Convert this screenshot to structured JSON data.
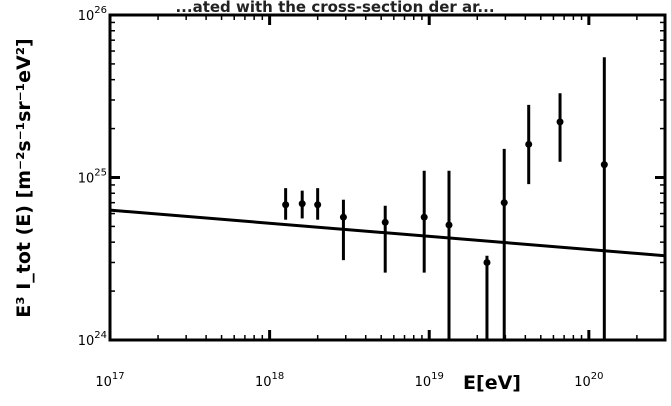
{
  "top_caption": "...ated with the cross-section der ar...",
  "chart_data": {
    "type": "scatter",
    "x_scale": "log",
    "y_scale": "log",
    "xlim": [
      1e+17,
      3e+20
    ],
    "ylim": [
      1e+24,
      1e+26
    ],
    "xlabel": "E[eV]",
    "ylabel": "E³ I_tot (E) [m⁻²s⁻¹sr⁻¹eV²]",
    "x_tick_labels": [
      {
        "value": 1e+17,
        "base": "10",
        "exp": "17"
      },
      {
        "value": 1e+18,
        "base": "10",
        "exp": "18"
      },
      {
        "value": 1e+19,
        "base": "10",
        "exp": "19"
      },
      {
        "value": 1e+20,
        "base": "10",
        "exp": "20"
      }
    ],
    "y_tick_labels": [
      {
        "value": 1e+24,
        "base": "10",
        "exp": "24"
      },
      {
        "value": 1e+25,
        "base": "10",
        "exp": "25"
      },
      {
        "value": 1e+26,
        "base": "10",
        "exp": "26"
      }
    ],
    "grid": false,
    "points": [
      {
        "x": 1.26e+18,
        "y": 6.8e+24,
        "y_low": 5.5e+24,
        "y_high": 8.6e+24
      },
      {
        "x": 1.6e+18,
        "y": 6.9e+24,
        "y_low": 5.6e+24,
        "y_high": 8.3e+24
      },
      {
        "x": 2e+18,
        "y": 6.8e+24,
        "y_low": 5.5e+24,
        "y_high": 8.6e+24
      },
      {
        "x": 2.9e+18,
        "y": 5.7e+24,
        "y_low": 3.1e+24,
        "y_high": 7.3e+24
      },
      {
        "x": 5.3e+18,
        "y": 5.3e+24,
        "y_low": 2.6e+24,
        "y_high": 6.7e+24
      },
      {
        "x": 9.3e+18,
        "y": 5.7e+24,
        "y_low": 2.6e+24,
        "y_high": 1.1e+25
      },
      {
        "x": 1.33e+19,
        "y": 5.1e+24,
        "y_low": 1e+24,
        "y_high": 1.1e+25
      },
      {
        "x": 2.3e+19,
        "y": 3e+24,
        "y_low": 1e+24,
        "y_high": 3.3e+24
      },
      {
        "x": 2.95e+19,
        "y": 7e+24,
        "y_low": 1e+24,
        "y_high": 1.5e+25
      },
      {
        "x": 4.2e+19,
        "y": 1.6e+25,
        "y_low": 9.1e+24,
        "y_high": 2.8e+25
      },
      {
        "x": 6.6e+19,
        "y": 2.2e+25,
        "y_low": 1.25e+25,
        "y_high": 3.3e+25
      },
      {
        "x": 1.25e+20,
        "y": 1.2e+25,
        "y_low": 1e+24,
        "y_high": 5.5e+25
      }
    ],
    "model_line": {
      "x": [
        1e+17,
        3e+20
      ],
      "y": [
        6.3e+24,
        3.3e+24
      ]
    }
  }
}
